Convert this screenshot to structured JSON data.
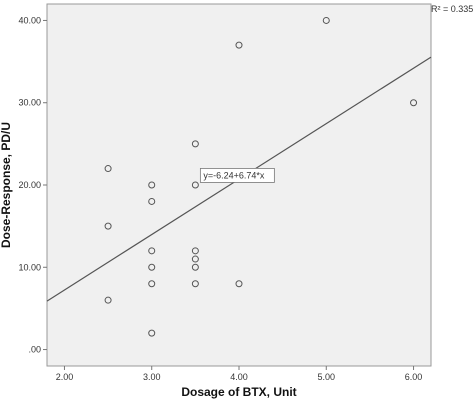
{
  "chart_data": {
    "type": "scatter",
    "title": "",
    "xlabel": "Dosage of BTX, Unit",
    "ylabel": "Dose-Response, PD/U",
    "xlim": [
      1.8,
      6.2
    ],
    "ylim": [
      -2,
      42
    ],
    "x_ticks": [
      2.0,
      3.0,
      4.0,
      5.0,
      6.0
    ],
    "x_tick_labels": [
      "2.00",
      "3.00",
      "4.00",
      "5.00",
      "6.00"
    ],
    "y_ticks": [
      0,
      10,
      20,
      30,
      40
    ],
    "y_tick_labels": [
      ".00",
      "10.00",
      "20.00",
      "30.00",
      "40.00"
    ],
    "grid": false,
    "points": [
      {
        "x": 2.5,
        "y": 22
      },
      {
        "x": 2.5,
        "y": 15
      },
      {
        "x": 2.5,
        "y": 6
      },
      {
        "x": 3.0,
        "y": 20
      },
      {
        "x": 3.0,
        "y": 18
      },
      {
        "x": 3.0,
        "y": 12
      },
      {
        "x": 3.0,
        "y": 10
      },
      {
        "x": 3.0,
        "y": 8
      },
      {
        "x": 3.0,
        "y": 2
      },
      {
        "x": 3.5,
        "y": 25
      },
      {
        "x": 3.5,
        "y": 20
      },
      {
        "x": 3.5,
        "y": 12
      },
      {
        "x": 3.5,
        "y": 11
      },
      {
        "x": 3.5,
        "y": 10
      },
      {
        "x": 3.5,
        "y": 8
      },
      {
        "x": 4.0,
        "y": 37
      },
      {
        "x": 4.0,
        "y": 8
      },
      {
        "x": 5.0,
        "y": 40
      },
      {
        "x": 6.0,
        "y": 30
      }
    ],
    "fit_line": {
      "intercept": -6.24,
      "slope": 6.74,
      "equation_label": "y=-6.24+6.74*x",
      "label_at": {
        "x": 3.5,
        "y": 20.8
      }
    },
    "r_squared_label": "R² = 0.335",
    "colors": {
      "point_stroke": "#555555",
      "line": "#555555",
      "plot_bg": "#f0f0f0",
      "frame": "#999999"
    }
  }
}
